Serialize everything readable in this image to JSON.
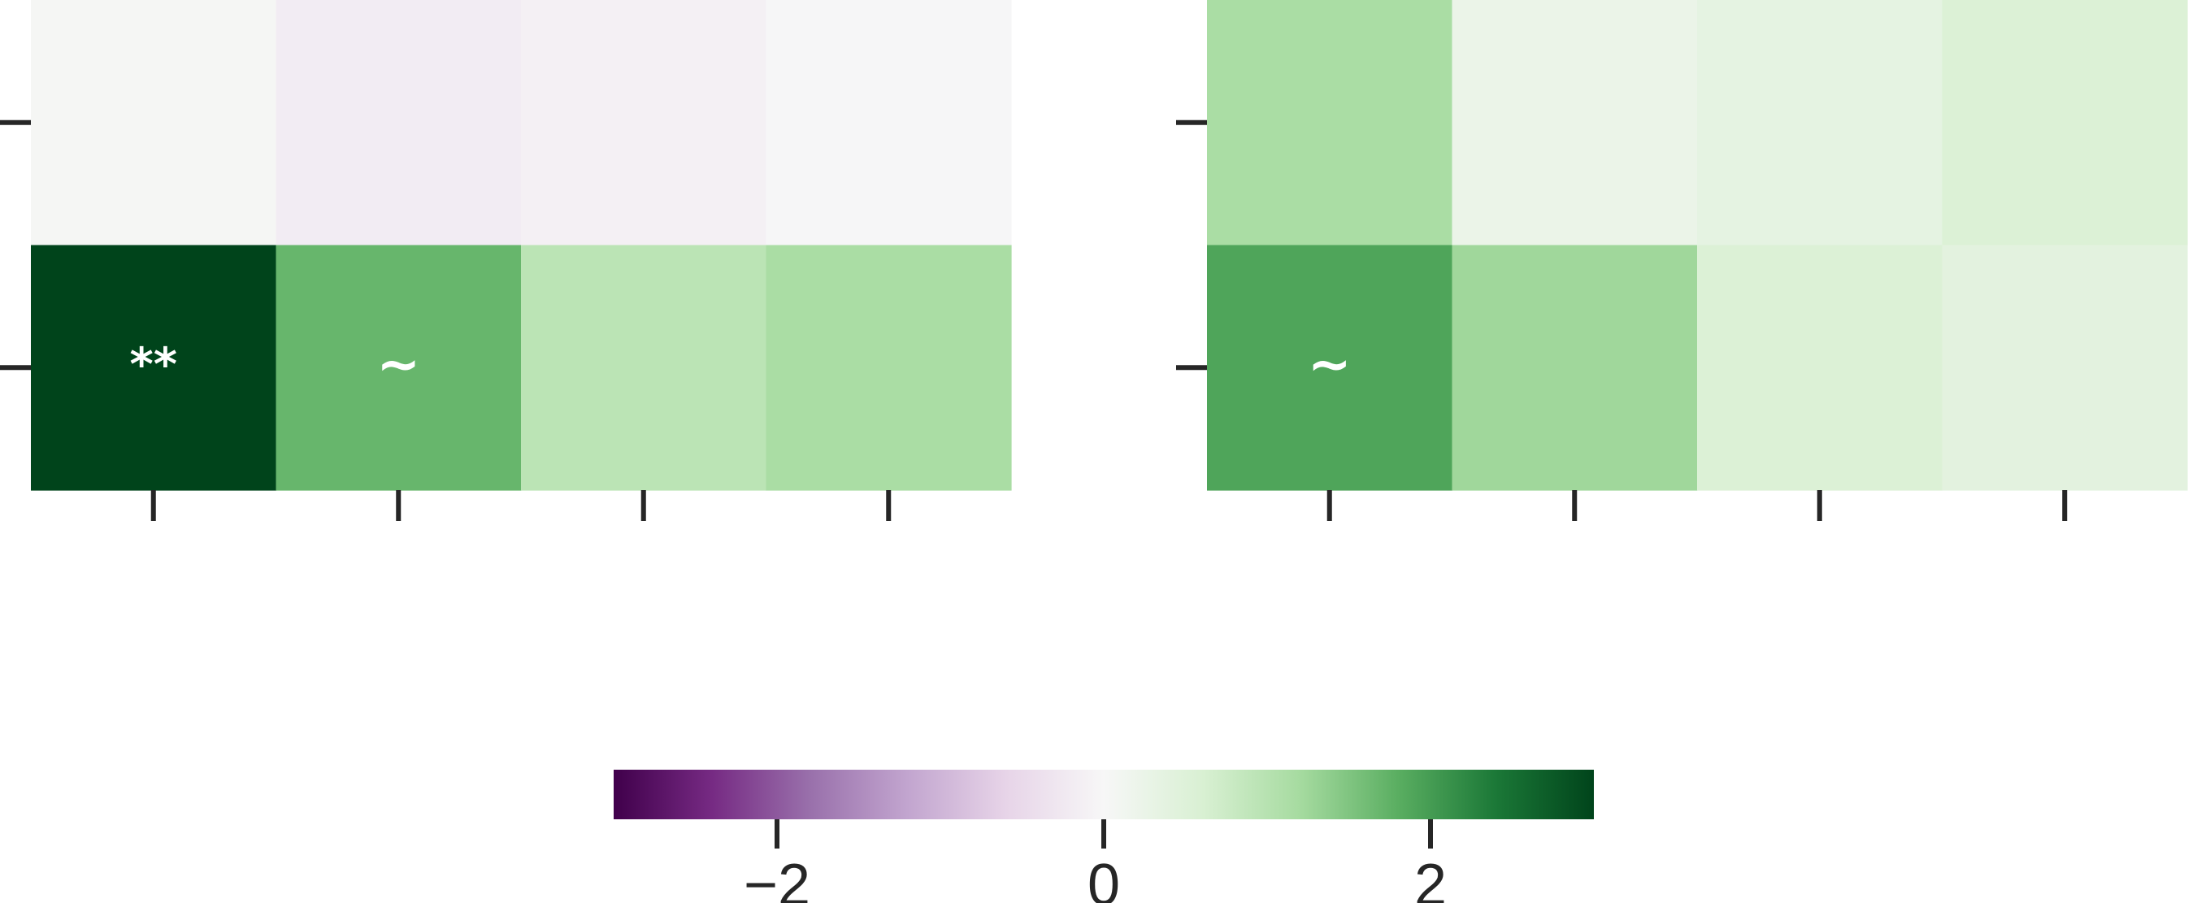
{
  "chart_data": [
    {
      "type": "heatmap",
      "title": "",
      "xlabel": "",
      "ylabel": "",
      "x_tick_labels": [
        "",
        "",
        "",
        ""
      ],
      "y_tick_labels": [
        "",
        ""
      ],
      "rows": 2,
      "cols": 4,
      "values": [
        [
          0.05,
          -0.18,
          -0.12,
          -0.02
        ],
        [
          3.2,
          1.7,
          0.95,
          1.15
        ]
      ],
      "annotations": [
        [
          "",
          "",
          "",
          ""
        ],
        [
          "**",
          "~",
          "",
          ""
        ]
      ]
    },
    {
      "type": "heatmap",
      "title": "",
      "xlabel": "",
      "ylabel": "",
      "x_tick_labels": [
        "",
        "",
        "",
        ""
      ],
      "y_tick_labels": [
        "",
        ""
      ],
      "rows": 2,
      "cols": 4,
      "values": [
        [
          1.15,
          0.25,
          0.35,
          0.55
        ],
        [
          1.9,
          1.25,
          0.55,
          0.4
        ]
      ],
      "annotations": [
        [
          "",
          "",
          "",
          ""
        ],
        [
          "~",
          "",
          "",
          ""
        ]
      ]
    }
  ],
  "colorbar": {
    "colormap": "PRGn",
    "vmin": -3,
    "vmax": 3,
    "ticks": [
      -2,
      0,
      2
    ],
    "tick_labels": [
      "−2",
      "0",
      "2"
    ],
    "orientation": "horizontal",
    "placement": "bottom-center"
  },
  "colors": {
    "axis": "#262626",
    "annotation_text": "#ffffff",
    "colormap_stops": [
      "#40004b",
      "#762a83",
      "#9970ab",
      "#c2a5cf",
      "#e7d4e8",
      "#f7f7f7",
      "#d9f0d3",
      "#a6dba0",
      "#5aae61",
      "#1b7837",
      "#00441b"
    ]
  }
}
